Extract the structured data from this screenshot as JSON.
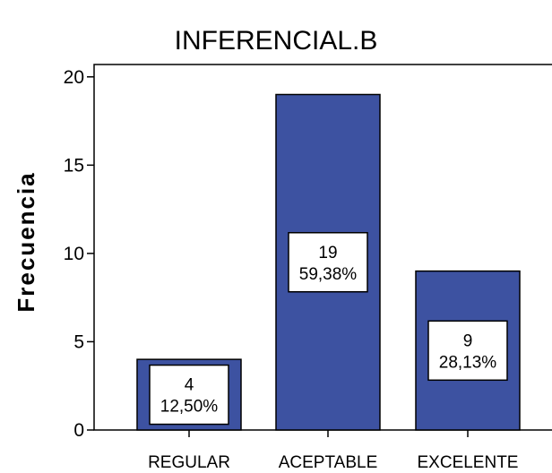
{
  "chart_data": {
    "type": "bar",
    "title": "INFERENCIAL.B",
    "xlabel": "",
    "ylabel": "Frecuencia",
    "categories": [
      "REGULAR",
      "ACEPTABLE",
      "EXCELENTE"
    ],
    "values": [
      4,
      19,
      9
    ],
    "data_labels": [
      {
        "count": "4",
        "percent": "12,50%"
      },
      {
        "count": "19",
        "percent": "59,38%"
      },
      {
        "count": "9",
        "percent": "28,13%"
      }
    ],
    "yticks": [
      "0",
      "5",
      "10",
      "15",
      "20"
    ],
    "ylim": [
      0,
      20.7
    ],
    "grid": false,
    "bar_color": "#3d52a1"
  }
}
